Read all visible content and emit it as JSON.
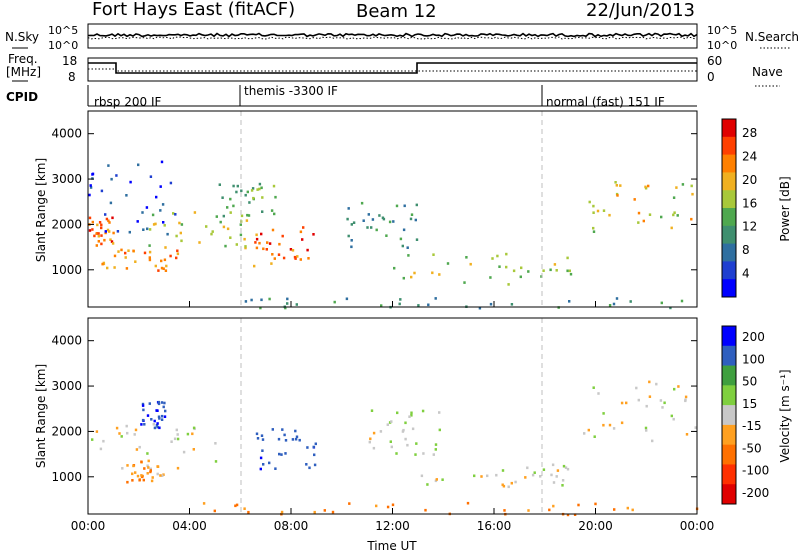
{
  "header": {
    "station": "Fort Hays East (fitACF)",
    "beam": "Beam 12",
    "date": "22/Jun/2013"
  },
  "noise_panel": {
    "left_label": "N.Sky",
    "right_label": "N.Search",
    "ytick_top": "10^5",
    "ytick_bottom": "10^0"
  },
  "freq_panel": {
    "left_label_1": "Freq.",
    "left_label_2": "[MHz]",
    "right_label": "Nave",
    "left_ticks": [
      "18",
      "8"
    ],
    "right_ticks": [
      "60",
      "0"
    ]
  },
  "cpid": {
    "label": "CPID",
    "segments": [
      {
        "start_hour": 0,
        "text": "rbsp 200 IF"
      },
      {
        "start_hour": 6,
        "text": "themis -3300 IF"
      },
      {
        "start_hour": 18,
        "text": "normal (fast) 151 IF"
      }
    ]
  },
  "chart_data": [
    {
      "type": "heatmap",
      "title": "",
      "xlabel": "Time UT",
      "ylabel": "Slant Range [km]",
      "xlim": [
        0,
        24
      ],
      "ylim": [
        180,
        4500
      ],
      "yticks": [
        "1000",
        "2000",
        "3000",
        "4000"
      ],
      "xticks": [
        "00:00",
        "04:00",
        "08:00",
        "12:00",
        "16:00",
        "20:00",
        "00:00"
      ],
      "colorbar": {
        "label": "Power [dB]",
        "ticks": [
          "4",
          "8",
          "12",
          "16",
          "20",
          "24",
          "28"
        ],
        "colors": [
          "#0000ff",
          "#1f3fd0",
          "#2f6fa0",
          "#3f8f6f",
          "#4fa84f",
          "#a8c83a",
          "#f0b020",
          "#ff8000",
          "#ff4000",
          "#e00000"
        ]
      },
      "regions": [
        {
          "t0": 0.0,
          "t1": 1.0,
          "r0": 1500,
          "r1": 2200,
          "level": 24
        },
        {
          "t0": 0.5,
          "t1": 3.5,
          "r0": 1000,
          "r1": 1500,
          "level": 22
        },
        {
          "t0": 2.0,
          "t1": 6.5,
          "r0": 1500,
          "r1": 2300,
          "level": 16
        },
        {
          "t0": 5.0,
          "t1": 7.5,
          "r0": 2200,
          "r1": 3000,
          "level": 14
        },
        {
          "t0": 6.5,
          "t1": 9.0,
          "r0": 1100,
          "r1": 2000,
          "level": 24
        },
        {
          "t0": 10.0,
          "t1": 13.0,
          "r0": 1500,
          "r1": 2500,
          "level": 10
        },
        {
          "t0": 12.0,
          "t1": 19.5,
          "r0": 700,
          "r1": 1400,
          "level": 16
        },
        {
          "t0": 19.5,
          "t1": 24.0,
          "r0": 1800,
          "r1": 3000,
          "level": 18
        },
        {
          "t0": 0.0,
          "t1": 3.5,
          "r0": 1800,
          "r1": 3500,
          "level": 5
        },
        {
          "t0": 4.0,
          "t1": 24.0,
          "r0": 180,
          "r1": 400,
          "level": 10
        }
      ]
    },
    {
      "type": "heatmap",
      "title": "",
      "xlabel": "Time UT",
      "ylabel": "Slant Range [km]",
      "xlim": [
        0,
        24
      ],
      "ylim": [
        180,
        4500
      ],
      "yticks": [
        "1000",
        "2000",
        "3000",
        "4000"
      ],
      "xticks": [
        "00:00",
        "04:00",
        "08:00",
        "12:00",
        "16:00",
        "20:00",
        "00:00"
      ],
      "colorbar": {
        "label": "Velocity [m s⁻¹]",
        "ticks": [
          "200",
          "100",
          "50",
          "15",
          "-15",
          "-50",
          "-100",
          "-200"
        ],
        "colors": [
          "#0000ff",
          "#2f5fbf",
          "#3f9f3f",
          "#7fcf3f",
          "#c8c8c8",
          "#ffa020",
          "#ff7000",
          "#ff3000",
          "#e00000"
        ]
      },
      "regions": [
        {
          "t0": 0.0,
          "t1": 5.0,
          "r0": 1200,
          "r1": 2200,
          "level": 0
        },
        {
          "t0": 1.5,
          "t1": 3.0,
          "r0": 900,
          "r1": 1400,
          "level": -40
        },
        {
          "t0": 2.0,
          "t1": 3.0,
          "r0": 2100,
          "r1": 2700,
          "level": 200
        },
        {
          "t0": 6.5,
          "t1": 9.0,
          "r0": 1200,
          "r1": 2100,
          "level": 180
        },
        {
          "t0": 11.0,
          "t1": 14.0,
          "r0": 1500,
          "r1": 2500,
          "level": 10
        },
        {
          "t0": 13.0,
          "t1": 19.5,
          "r0": 800,
          "r1": 1300,
          "level": 0
        },
        {
          "t0": 19.5,
          "t1": 24.0,
          "r0": 1800,
          "r1": 3200,
          "level": 0
        },
        {
          "t0": 4.0,
          "t1": 24.0,
          "r0": 180,
          "r1": 450,
          "level": -60
        }
      ]
    }
  ],
  "colors": {
    "line": "#000000",
    "separator": "#bfbfbf"
  }
}
